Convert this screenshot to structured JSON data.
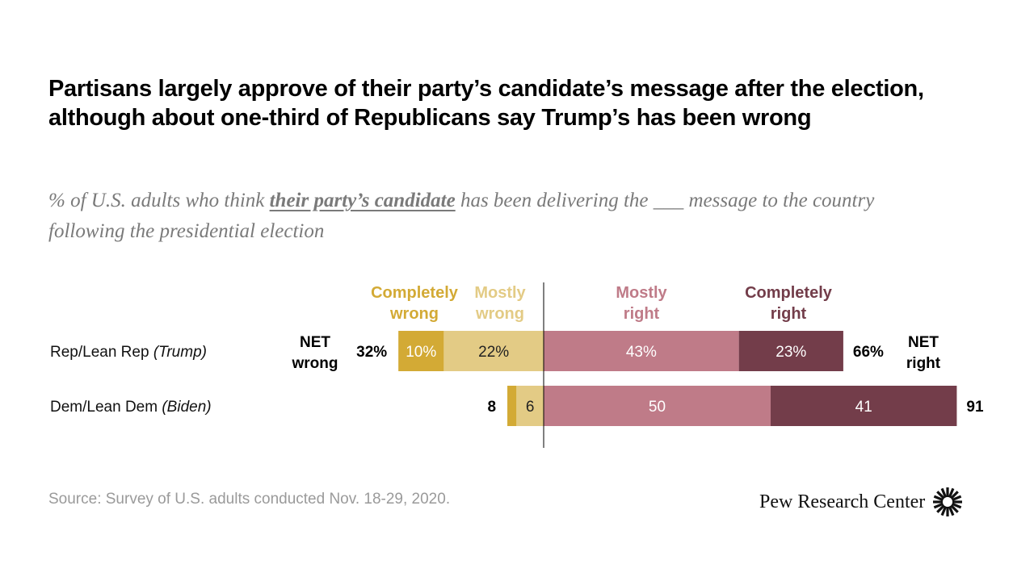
{
  "title": "Partisans largely approve of their party’s candidate’s message after the election, although about one-third of Republicans say Trump’s has been wrong",
  "subtitle": {
    "before": "% of U.S. adults who think ",
    "emphasis": "their party’s candidate",
    "after": " has been delivering the ___ message to the country following the presidential election"
  },
  "source": "Source: Survey of U.S. adults conducted Nov. 18-29, 2020.",
  "brand": "Pew Research Center",
  "colors": {
    "completely_wrong": "#d3aa35",
    "mostly_wrong": "#e3cb85",
    "mostly_right": "#bf7b88",
    "completely_right": "#733d4a",
    "axis": "#000000"
  },
  "chart_data": {
    "type": "bar",
    "orientation": "horizontal-diverging",
    "title": "Partisans largely approve of their party’s candidate’s message after the election, although about one-third of Republicans say Trump’s has been wrong",
    "categories": [
      "Rep/Lean Rep",
      "Dem/Lean Dem"
    ],
    "category_notes": [
      "(Trump)",
      "(Biden)"
    ],
    "series": [
      {
        "name": "Completely wrong",
        "side": "negative",
        "values": [
          10,
          2
        ],
        "labels": [
          "10%",
          ""
        ]
      },
      {
        "name": "Mostly wrong",
        "side": "negative",
        "values": [
          22,
          6
        ],
        "labels": [
          "22%",
          "6"
        ]
      },
      {
        "name": "Mostly right",
        "side": "positive",
        "values": [
          43,
          50
        ],
        "labels": [
          "43%",
          "50"
        ]
      },
      {
        "name": "Completely right",
        "side": "positive",
        "values": [
          23,
          41
        ],
        "labels": [
          "23%",
          "41"
        ]
      }
    ],
    "legend": [
      {
        "line1": "Completely",
        "line2": "wrong"
      },
      {
        "line1": "Mostly",
        "line2": "wrong"
      },
      {
        "line1": "Mostly",
        "line2": "right"
      },
      {
        "line1": "Completely",
        "line2": "right"
      }
    ],
    "net_wrong": {
      "label_line1": "NET",
      "label_line2": "wrong",
      "values": [
        32,
        8
      ],
      "labels": [
        "32%",
        "8"
      ]
    },
    "net_right": {
      "label_line1": "NET",
      "label_line2": "right",
      "values": [
        66,
        91
      ],
      "labels": [
        "66%",
        "91"
      ]
    },
    "legend_placement": "top",
    "grid": false,
    "xlim": [
      -40,
      100
    ]
  }
}
